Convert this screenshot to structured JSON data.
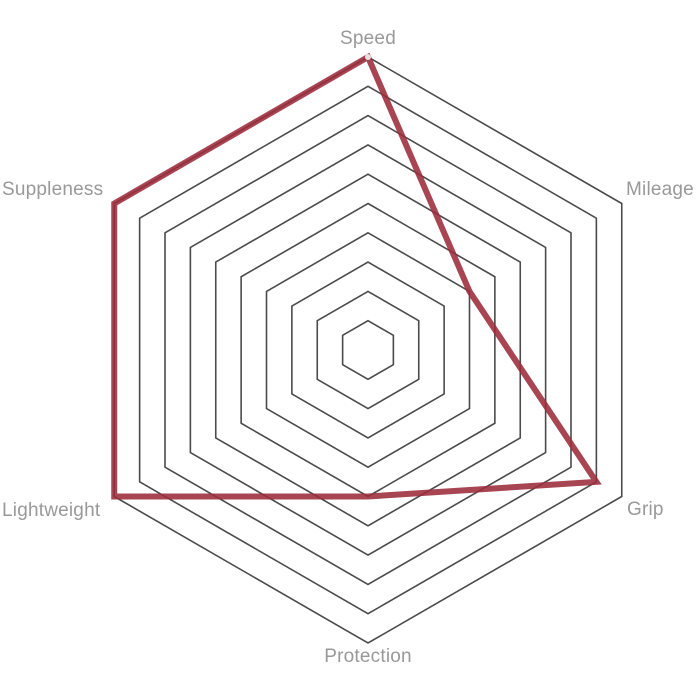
{
  "page": {
    "background": "#ffffff"
  },
  "chart_data": {
    "type": "radar",
    "grid_shape": "hexagon",
    "categories": [
      "Speed",
      "Mileage",
      "Grip",
      "Protection",
      "Lightweight",
      "Suppleness"
    ],
    "values": [
      10,
      4,
      9,
      5,
      10,
      10
    ],
    "scale_max": 10,
    "grid_rings": 10,
    "grid_color": "#4b4b4b",
    "series_color": "#9c2b3a",
    "label_color": "#999999",
    "legend_position": "none",
    "marker": {
      "axis": "Speed",
      "color": "#e9e0e0"
    }
  }
}
